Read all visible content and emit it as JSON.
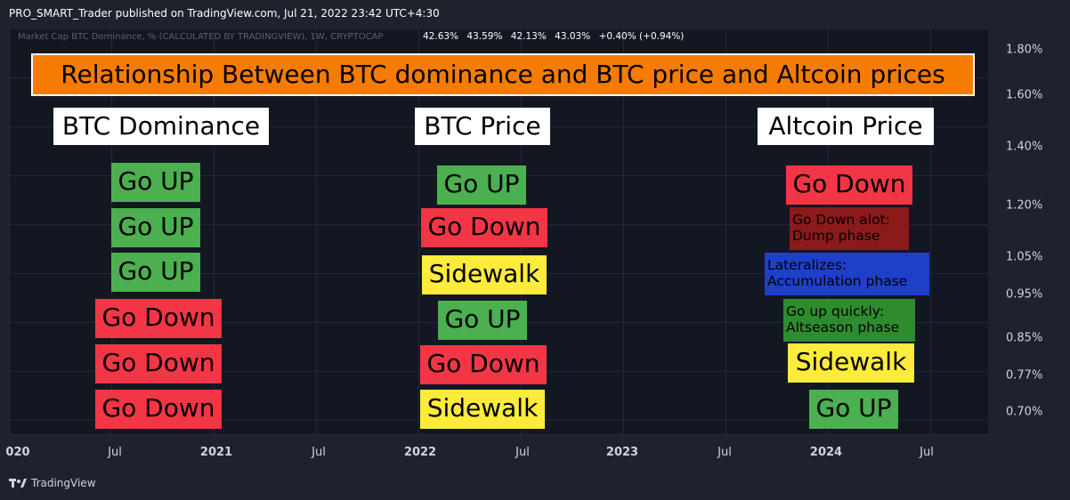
{
  "header": {
    "text": "PRO_SMART_Trader published on TradingView.com, Jul 21, 2022 23:42 UTC+4:30"
  },
  "chart": {
    "legend": "Market Cap BTC Dominance, % (CALCULATED BY TRADINGVIEW), 1W, CRYPTOCAP",
    "ohlc": [
      "42.63%",
      "43.59%",
      "42.13%",
      "43.03%",
      "+0.40% (+0.94%)"
    ]
  },
  "price_axis": [
    "1.80%",
    "1.60%",
    "1.40%",
    "1.20%",
    "1.05%",
    "0.95%",
    "0.85%",
    "0.77%",
    "0.70%"
  ],
  "time_axis": [
    "020",
    "Jul",
    "2021",
    "Jul",
    "2022",
    "Jul",
    "2023",
    "Jul",
    "2024",
    "Jul"
  ],
  "footer": {
    "brand": "TradingView"
  },
  "overlay": {
    "title": "Relationship Between BTC dominance and BTC price and Altcoin prices",
    "columns": {
      "dominance": {
        "header": "BTC Dominance",
        "rows": [
          "Go UP",
          "Go UP",
          "Go UP",
          "Go Down",
          "Go Down",
          "Go Down"
        ]
      },
      "btc_price": {
        "header": "BTC Price",
        "rows": [
          "Go UP",
          "Go Down",
          "Sidewalk",
          "Go UP",
          "Go Down",
          "Sidewalk"
        ]
      },
      "altcoin": {
        "header": "Altcoin Price",
        "rows": [
          {
            "l1": "Go Down"
          },
          {
            "l1": "Go Down alot:",
            "l2": "Dump phase"
          },
          {
            "l1": "Lateralizes:",
            "l2": "Accumulation phase"
          },
          {
            "l1": "Go up quickly:",
            "l2": "Altseason phase"
          },
          {
            "l1": "Sidewalk"
          },
          {
            "l1": "Go UP"
          }
        ]
      }
    }
  },
  "colors": {
    "up": "#4caf50",
    "down": "#f23645",
    "sidewalk": "#ffeb3b",
    "dump": "#8b1a1a",
    "accumulation": "#1e40c8",
    "altseason": "#2e8b2e",
    "title_bg": "#f57c00"
  }
}
